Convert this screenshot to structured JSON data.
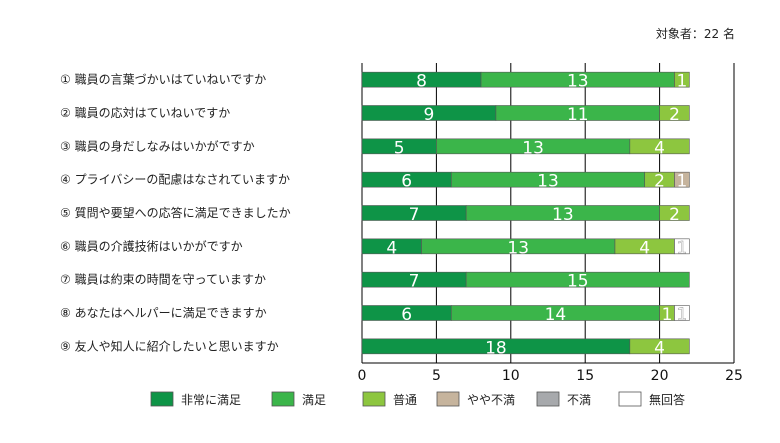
{
  "respondents_label": "対象者：22 名",
  "chart_data": {
    "type": "bar",
    "orientation": "horizontal",
    "stacked": true,
    "title": "",
    "xlabel": "",
    "ylabel": "",
    "xlim": [
      0,
      25
    ],
    "xticks": [
      0,
      5,
      10,
      15,
      20,
      25
    ],
    "gridlines": "vertical",
    "legend_position": "bottom",
    "categories": [
      "① 職員の言葉づかいはていねいですか",
      "② 職員の応対はていねいですか",
      "③ 職員の身だしなみはいかがですか",
      "④ プライバシーの配慮はなされていますか",
      "⑤ 質問や要望への応答に満足できましたか",
      "⑥ 職員の介護技術はいかがですか",
      "⑦ 職員は約束の時間を守っていますか",
      "⑧ あなたはヘルパーに満足できますか",
      "⑨ 友人や知人に紹介したいと思いますか"
    ],
    "series": [
      {
        "name": "非常に満足",
        "color": "#0e9447",
        "values": [
          8,
          9,
          5,
          6,
          7,
          4,
          7,
          6,
          18
        ]
      },
      {
        "name": "満足",
        "color": "#3bb54a",
        "values": [
          13,
          11,
          13,
          13,
          13,
          13,
          15,
          14,
          0
        ]
      },
      {
        "name": "普通",
        "color": "#8dc63f",
        "values": [
          1,
          2,
          4,
          2,
          2,
          4,
          0,
          1,
          4
        ]
      },
      {
        "name": "やや不満",
        "color": "#c6b49d",
        "values": [
          0,
          0,
          0,
          1,
          0,
          0,
          0,
          0,
          0
        ]
      },
      {
        "name": "不満",
        "color": "#a7a9ac",
        "values": [
          0,
          0,
          0,
          0,
          0,
          0,
          0,
          0,
          0
        ]
      },
      {
        "name": "無回答",
        "color": "#ffffff",
        "values": [
          0,
          0,
          0,
          0,
          0,
          1,
          0,
          1,
          0
        ]
      }
    ]
  }
}
